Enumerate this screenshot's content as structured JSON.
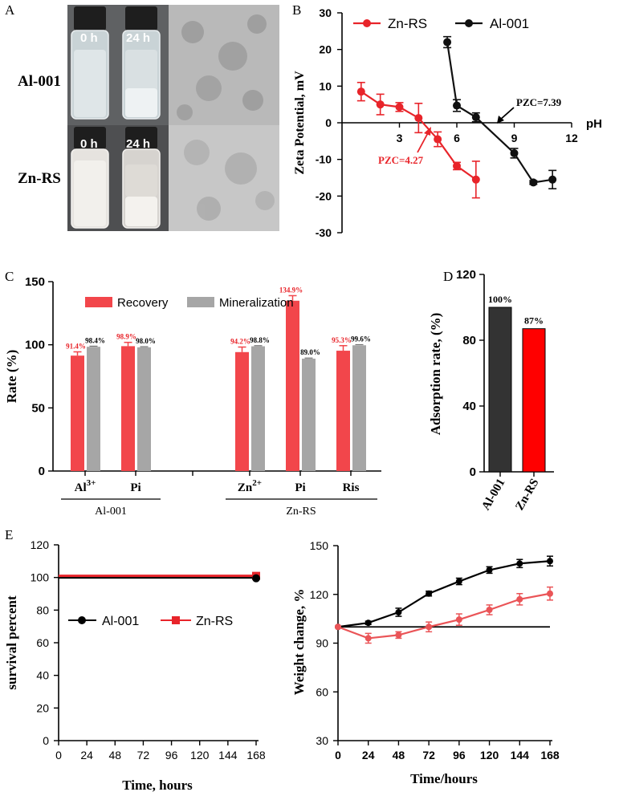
{
  "panels": {
    "a": "A",
    "b": "B",
    "c": "C",
    "d": "D",
    "e": "E"
  },
  "photo": {
    "row_labels": [
      "Al-001",
      "Zn-RS"
    ],
    "time_labels": [
      "0 h",
      "24 h"
    ]
  },
  "chart_data": [
    {
      "id": "B",
      "type": "line",
      "ylabel": "Zeta Potential, mV",
      "xlabel": "pH",
      "xlim": [
        0,
        12
      ],
      "ylim": [
        -30,
        30
      ],
      "xticks": [
        3,
        6,
        9,
        12
      ],
      "yticks": [
        30,
        20,
        10,
        0,
        -10,
        -20,
        -30
      ],
      "legend": [
        "Zn-RS",
        "Al-001"
      ],
      "series": [
        {
          "name": "Zn-RS",
          "color": "#e8242a",
          "x": [
            1,
            2,
            3,
            4,
            5,
            6,
            7
          ],
          "y": [
            8.5,
            5.0,
            4.3,
            1.3,
            -4.5,
            -11.8,
            -15.5
          ],
          "err": [
            2.5,
            2.8,
            1.2,
            4.0,
            2.0,
            1.0,
            5.0
          ]
        },
        {
          "name": "Al-001",
          "color": "#111111",
          "x": [
            5.5,
            6,
            7,
            9,
            10,
            11
          ],
          "y": [
            22,
            4.7,
            1.5,
            -8.3,
            -16.3,
            -15.5
          ],
          "err": [
            1.5,
            1.6,
            1.2,
            1.3,
            0.5,
            2.5
          ]
        }
      ],
      "annotations": [
        {
          "text": "PZC=4.27",
          "color": "#e8242a"
        },
        {
          "text": "PZC=7.39",
          "color": "#000000"
        }
      ]
    },
    {
      "id": "C",
      "type": "bar",
      "ylabel": "Rate (%)",
      "ylim": [
        0,
        150
      ],
      "yticks": [
        0,
        50,
        100,
        150
      ],
      "legend": [
        "Recovery",
        "Mineralization"
      ],
      "colors": {
        "Recovery": "#f2464b",
        "Mineralization": "#a6a6a6"
      },
      "groups": [
        {
          "label": "Al",
          "sup": "3+",
          "recovery": 91.4,
          "recovery_err": 3,
          "mineralization": 98.4,
          "mineralization_err": 0.5,
          "recovery_label": "91.4%",
          "mineralization_label": "98.4%"
        },
        {
          "label": "Pi",
          "sup": "",
          "recovery": 98.9,
          "recovery_err": 3,
          "mineralization": 98.0,
          "mineralization_err": 0.5,
          "recovery_label": "98.9%",
          "mineralization_label": "98.0%"
        },
        {
          "label": "Zn",
          "sup": "2+",
          "recovery": 94.2,
          "recovery_err": 4,
          "mineralization": 98.8,
          "mineralization_err": 0.5,
          "recovery_label": "94.2%",
          "mineralization_label": "98.8%"
        },
        {
          "label": "Pi",
          "sup": "",
          "recovery": 134.9,
          "recovery_err": 4,
          "mineralization": 89.0,
          "mineralization_err": 0.5,
          "recovery_label": "134.9%",
          "mineralization_label": "89.0%"
        },
        {
          "label": "Ris",
          "sup": "",
          "recovery": 95.3,
          "recovery_err": 4,
          "mineralization": 99.6,
          "mineralization_err": 0.5,
          "recovery_label": "95.3%",
          "mineralization_label": "99.6%"
        }
      ],
      "group_labels": [
        "Al-001",
        "Zn-RS"
      ]
    },
    {
      "id": "D",
      "type": "bar",
      "ylabel": "Adsorption rate, (%)",
      "ylim": [
        0,
        120
      ],
      "yticks": [
        0,
        40,
        80,
        120
      ],
      "categories": [
        "Al-001",
        "Zn-RS"
      ],
      "values": [
        100,
        87
      ],
      "value_labels": [
        "100%",
        "87%"
      ],
      "colors": [
        "#333333",
        "#ff0000"
      ]
    },
    {
      "id": "E1",
      "type": "line",
      "ylabel": "survival percent",
      "xlabel": "Time, hours",
      "xlim": [
        0,
        168
      ],
      "ylim": [
        0,
        120
      ],
      "xticks": [
        0,
        24,
        48,
        72,
        96,
        120,
        144,
        168
      ],
      "yticks": [
        0,
        20,
        40,
        60,
        80,
        100,
        120
      ],
      "legend": [
        "Al-001",
        "Zn-RS"
      ],
      "series": [
        {
          "name": "Al-001",
          "color": "#000000",
          "x": [
            0,
            168
          ],
          "y": [
            100,
            100
          ]
        },
        {
          "name": "Zn-RS",
          "color": "#e8242a",
          "x": [
            0,
            168
          ],
          "y": [
            101,
            101
          ]
        }
      ]
    },
    {
      "id": "E2",
      "type": "line",
      "ylabel": "Weight change, %",
      "xlabel": "Time/hours",
      "xlim": [
        0,
        168
      ],
      "ylim": [
        30,
        150
      ],
      "xticks": [
        0,
        24,
        48,
        72,
        96,
        120,
        144,
        168
      ],
      "yticks": [
        30,
        60,
        90,
        120,
        150
      ],
      "reference_y": 100,
      "series": [
        {
          "name": "Al-001",
          "color": "#000000",
          "x": [
            0,
            24,
            48,
            72,
            96,
            120,
            144,
            168
          ],
          "y": [
            100,
            102.5,
            109,
            120.5,
            128,
            135,
            139,
            140.5
          ],
          "err": [
            0.5,
            1,
            2.5,
            1.5,
            2,
            2,
            2.5,
            3
          ]
        },
        {
          "name": "Zn-RS",
          "color": "#ea5457",
          "x": [
            0,
            24,
            48,
            72,
            96,
            120,
            144,
            168
          ],
          "y": [
            100,
            93,
            95,
            100,
            104.5,
            110.5,
            117,
            120.5
          ],
          "err": [
            0.5,
            3,
            2,
            3,
            3.5,
            3,
            3.5,
            4
          ]
        }
      ]
    }
  ]
}
